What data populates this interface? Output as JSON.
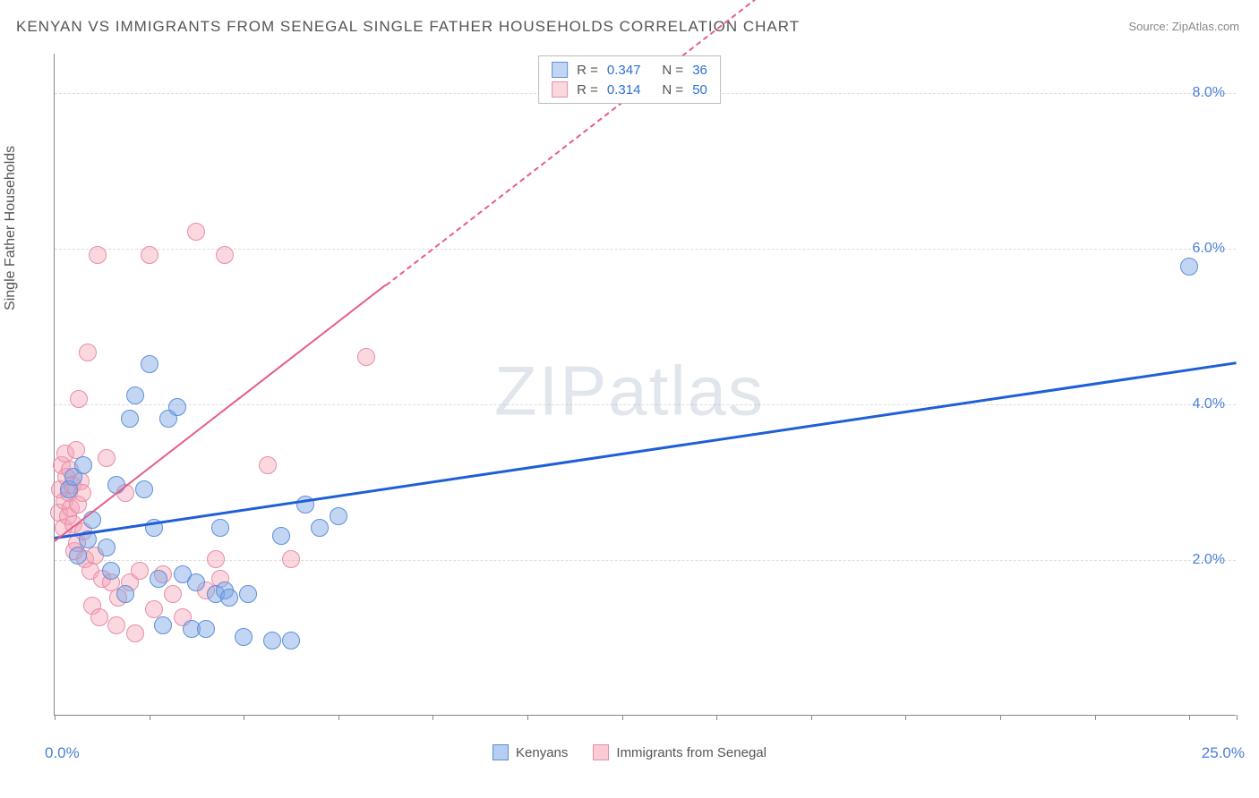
{
  "title": "KENYAN VS IMMIGRANTS FROM SENEGAL SINGLE FATHER HOUSEHOLDS CORRELATION CHART",
  "source": "Source: ZipAtlas.com",
  "y_axis_title": "Single Father Households",
  "watermark": "ZIPatlas",
  "chart": {
    "type": "scatter",
    "xlim": [
      0,
      25
    ],
    "ylim": [
      0,
      8.5
    ],
    "x_tick_positions": [
      0,
      2,
      4,
      6,
      8,
      10,
      12,
      14,
      16,
      18,
      20,
      22,
      24,
      25
    ],
    "x_labels": {
      "min": "0.0%",
      "max": "25.0%"
    },
    "y_gridlines": [
      2.0,
      4.0,
      6.0,
      8.0
    ],
    "y_labels": [
      "2.0%",
      "4.0%",
      "6.0%",
      "8.0%"
    ],
    "background_color": "#ffffff",
    "grid_color": "#dddddd",
    "axis_color": "#888888",
    "tick_label_color": "#4a7fd8",
    "series": [
      {
        "name": "Kenyans",
        "fill": "rgba(120,165,230,0.45)",
        "stroke": "#5f8fd6",
        "marker_radius": 10,
        "trend_color": "#1f5fd6",
        "trend_width": 3,
        "trend_dash_after_x": 25,
        "R": "0.347",
        "N": "36",
        "trend": {
          "x1": 0,
          "y1": 2.3,
          "x2": 25,
          "y2": 4.55
        },
        "points": [
          [
            0.3,
            2.9
          ],
          [
            0.4,
            3.05
          ],
          [
            0.5,
            2.05
          ],
          [
            0.6,
            3.2
          ],
          [
            0.7,
            2.25
          ],
          [
            0.8,
            2.5
          ],
          [
            1.1,
            2.15
          ],
          [
            1.2,
            1.85
          ],
          [
            1.3,
            2.95
          ],
          [
            1.5,
            1.55
          ],
          [
            1.6,
            3.8
          ],
          [
            1.7,
            4.1
          ],
          [
            1.9,
            2.9
          ],
          [
            2.0,
            4.5
          ],
          [
            2.1,
            2.4
          ],
          [
            2.2,
            1.75
          ],
          [
            2.3,
            1.15
          ],
          [
            2.4,
            3.8
          ],
          [
            2.6,
            3.95
          ],
          [
            2.7,
            1.8
          ],
          [
            2.9,
            1.1
          ],
          [
            3.0,
            1.7
          ],
          [
            3.2,
            1.1
          ],
          [
            3.4,
            1.55
          ],
          [
            3.5,
            2.4
          ],
          [
            3.6,
            1.6
          ],
          [
            3.7,
            1.5
          ],
          [
            4.0,
            1.0
          ],
          [
            4.1,
            1.55
          ],
          [
            4.6,
            0.95
          ],
          [
            4.8,
            2.3
          ],
          [
            5.0,
            0.95
          ],
          [
            5.3,
            2.7
          ],
          [
            5.6,
            2.4
          ],
          [
            6.0,
            2.55
          ],
          [
            24.0,
            5.75
          ]
        ]
      },
      {
        "name": "Immigrants from Senegal",
        "fill": "rgba(245,160,180,0.42)",
        "stroke": "#e68fa6",
        "marker_radius": 10,
        "trend_color": "#e75d87",
        "trend_width": 2,
        "trend_dash_after_x": 7.0,
        "R": "0.314",
        "N": "50",
        "trend": {
          "x1": 0,
          "y1": 2.25,
          "x2": 25,
          "y2": 14.0
        },
        "points": [
          [
            0.1,
            2.6
          ],
          [
            0.12,
            2.9
          ],
          [
            0.15,
            3.2
          ],
          [
            0.18,
            2.4
          ],
          [
            0.2,
            2.75
          ],
          [
            0.22,
            3.35
          ],
          [
            0.25,
            3.05
          ],
          [
            0.28,
            2.55
          ],
          [
            0.3,
            2.85
          ],
          [
            0.32,
            3.15
          ],
          [
            0.35,
            2.65
          ],
          [
            0.38,
            2.95
          ],
          [
            0.4,
            2.45
          ],
          [
            0.42,
            2.1
          ],
          [
            0.45,
            3.4
          ],
          [
            0.48,
            2.2
          ],
          [
            0.5,
            2.7
          ],
          [
            0.52,
            4.05
          ],
          [
            0.55,
            3.0
          ],
          [
            0.58,
            2.85
          ],
          [
            0.6,
            2.35
          ],
          [
            0.65,
            2.0
          ],
          [
            0.7,
            4.65
          ],
          [
            0.75,
            1.85
          ],
          [
            0.8,
            1.4
          ],
          [
            0.85,
            2.05
          ],
          [
            0.9,
            5.9
          ],
          [
            0.95,
            1.25
          ],
          [
            1.0,
            1.75
          ],
          [
            1.1,
            3.3
          ],
          [
            1.2,
            1.7
          ],
          [
            1.3,
            1.15
          ],
          [
            1.35,
            1.5
          ],
          [
            1.5,
            2.85
          ],
          [
            1.6,
            1.7
          ],
          [
            1.7,
            1.05
          ],
          [
            1.8,
            1.85
          ],
          [
            2.0,
            5.9
          ],
          [
            2.1,
            1.35
          ],
          [
            2.3,
            1.8
          ],
          [
            2.5,
            1.55
          ],
          [
            2.7,
            1.25
          ],
          [
            3.0,
            6.2
          ],
          [
            3.2,
            1.6
          ],
          [
            3.4,
            2.0
          ],
          [
            3.5,
            1.75
          ],
          [
            3.6,
            5.9
          ],
          [
            4.5,
            3.2
          ],
          [
            5.0,
            2.0
          ],
          [
            6.6,
            4.6
          ]
        ]
      }
    ]
  },
  "legend_bottom": [
    {
      "label": "Kenyans",
      "fill": "rgba(120,165,230,0.55)",
      "stroke": "#5f8fd6"
    },
    {
      "label": "Immigrants from Senegal",
      "fill": "rgba(245,160,180,0.55)",
      "stroke": "#e68fa6"
    }
  ]
}
